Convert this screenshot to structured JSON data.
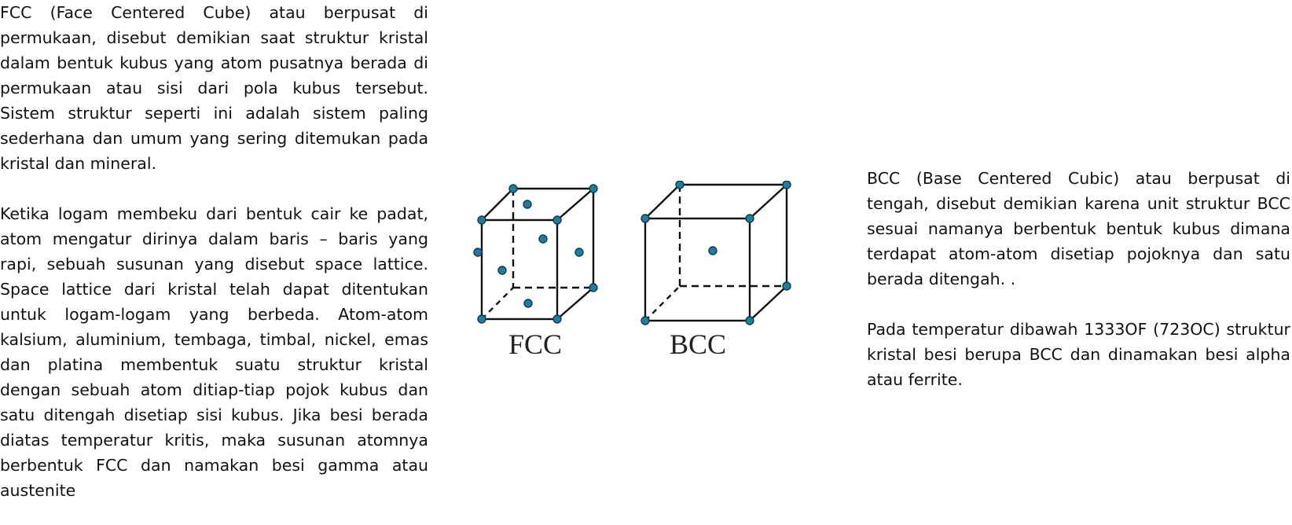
{
  "left_column": {
    "paragraph_1": "FCC (Face Centered Cube) atau berpusat di permukaan, disebut demikian saat struktur kristal dalam bentuk kubus yang atom pusatnya berada di permukaan atau sisi dari pola kubus tersebut. Sistem struktur seperti ini adalah sistem paling sederhana dan umum yang sering ditemukan pada kristal dan mineral.",
    "paragraph_2": "Ketika logam membeku dari bentuk cair ke padat, atom mengatur dirinya dalam baris – baris yang rapi, sebuah susunan yang disebut space lattice. Space lattice dari kristal telah dapat ditentukan untuk logam-logam yang berbeda. Atom-atom kalsium, aluminium, tembaga, timbal, nickel, emas dan platina membentuk suatu struktur kristal dengan sebuah atom ditiap-tiap pojok kubus dan satu ditengah disetiap sisi kubus. Jika besi berada diatas temperatur kritis, maka susunan atomnya berbentuk FCC dan namakan besi gamma atau austenite"
  },
  "figure": {
    "fcc_label": "FCC",
    "bcc_label": "BCC",
    "atom_color": "#1f7ea0"
  },
  "right_column": {
    "paragraph_1": "BCC (Base Centered Cubic) atau berpusat di tengah, disebut demikian karena unit struktur BCC sesuai namanya berbentuk bentuk kubus dimana terdapat atom-atom disetiap pojoknya dan satu berada ditengah. .",
    "paragraph_2": "Pada temperatur dibawah 1333OF (723OC) struktur kristal besi berupa BCC dan dinamakan besi alpha atau ferrite."
  }
}
